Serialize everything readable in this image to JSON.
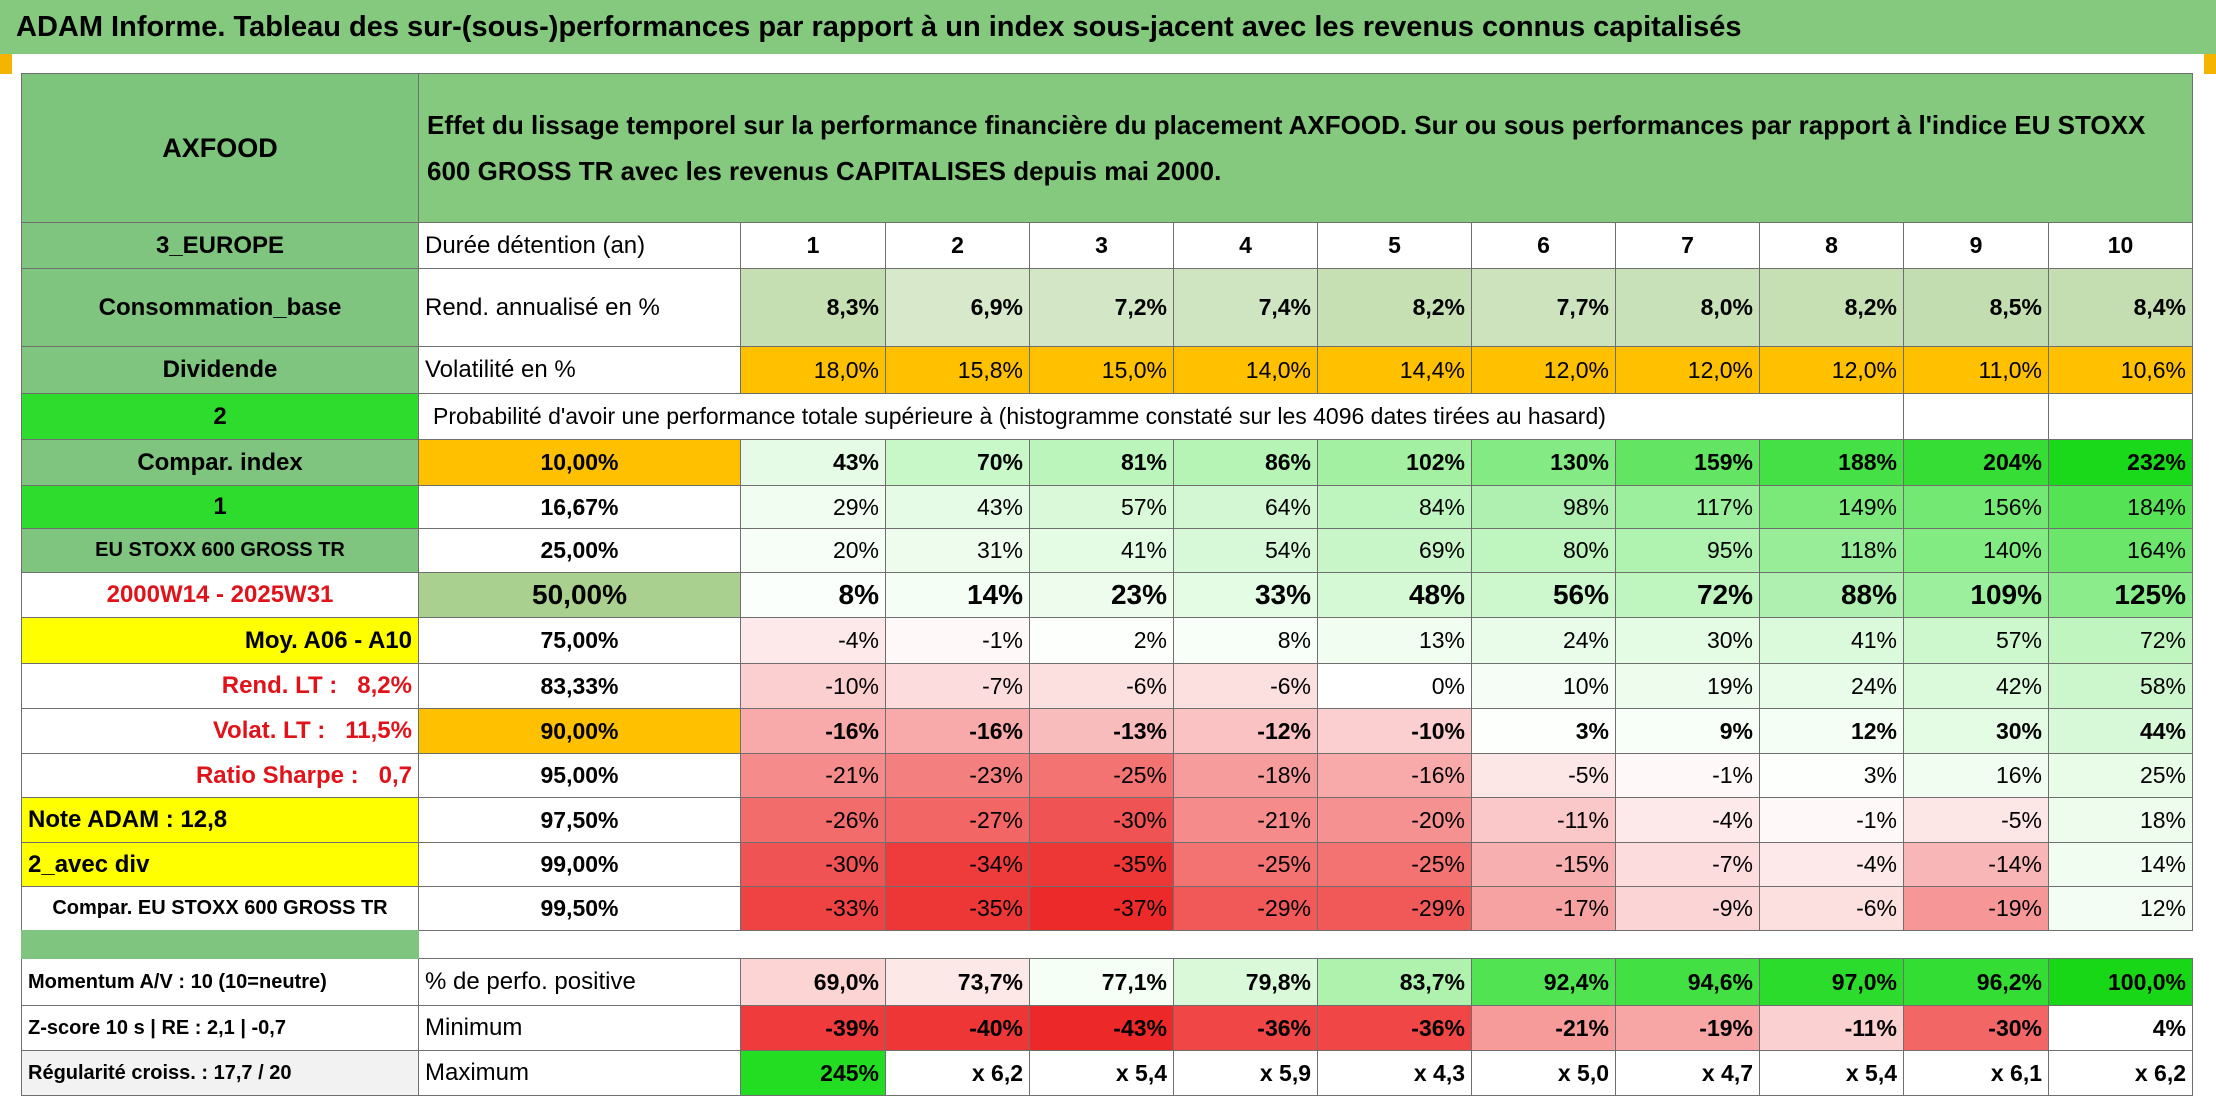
{
  "header": {
    "title": "ADAM Informe. Tableau des sur-(sous-)performances par rapport à un index sous-jacent avec les revenus connus capitalisés"
  },
  "table": {
    "top": {
      "name": "AXFOOD",
      "description": "Effet du lissage temporel sur la performance financière du placement AXFOOD. Sur ou sous performances par rapport à l'indice EU STOXX 600 GROSS TR avec les revenus CAPITALISES depuis mai 2000.",
      "nameFill": "#7dc47d",
      "descriptionFill": "#84c97e"
    },
    "rows": [
      {
        "label": "3_EUROPE",
        "labelFill": "#7fc47f",
        "head": "Durée détention (an)",
        "headFill": "#ffffff",
        "cells": [
          "1",
          "2",
          "3",
          "4",
          "5",
          "6",
          "7",
          "8",
          "9",
          "10"
        ],
        "fills": [
          "#ffffff",
          "#ffffff",
          "#ffffff",
          "#ffffff",
          "#ffffff",
          "#ffffff",
          "#ffffff",
          "#ffffff",
          "#ffffff",
          "#ffffff"
        ]
      },
      {
        "label": "Consommation_base",
        "labelFill": "#7fc47f",
        "head": "Rend. annualisé en %",
        "headFill": "#ffffff",
        "cells": [
          "8,3%",
          "6,9%",
          "7,2%",
          "7,4%",
          "8,2%",
          "7,7%",
          "8,0%",
          "8,2%",
          "8,5%",
          "8,4%"
        ],
        "fills": [
          "#c5dfb3",
          "#d8e9cb",
          "#d3e6c5",
          "#cfe4c0",
          "#c6e0b4",
          "#cde3be",
          "#c9e1b8",
          "#c6e0b4",
          "#c2ddaf",
          "#c4deb1"
        ]
      },
      {
        "label": "Dividende",
        "labelFill": "#7fc47f",
        "head": "Volatilité en %",
        "headFill": "#ffffff",
        "cells": [
          "18,0%",
          "15,8%",
          "15,0%",
          "14,0%",
          "14,4%",
          "12,0%",
          "12,0%",
          "12,0%",
          "11,0%",
          "10,6%"
        ],
        "fills": [
          "#ffc000",
          "#ffc000",
          "#ffc000",
          "#ffc000",
          "#ffc000",
          "#ffc000",
          "#ffc000",
          "#ffc000",
          "#ffc000",
          "#ffc000"
        ]
      },
      {
        "label": "2",
        "labelFill": "#2ddc2d",
        "head": "Probabilité d'avoir une performance totale supérieure à (histogramme constaté sur les 4096 dates tirées au hasard)",
        "headFill": "#ffffff",
        "cells": [],
        "fills": []
      },
      {
        "label": "Compar. index",
        "labelFill": "#7fc47f",
        "head": "10,00%",
        "headFill": "#ffc000",
        "cells": [
          "43%",
          "70%",
          "81%",
          "86%",
          "102%",
          "130%",
          "159%",
          "188%",
          "204%",
          "232%"
        ],
        "fills": [
          "#e6fbe6",
          "#c8f7c8",
          "#bcf5bc",
          "#b6f4b6",
          "#a3f0a3",
          "#84eb84",
          "#63e563",
          "#45e045",
          "#35dd35",
          "#1ad81a"
        ]
      },
      {
        "label": "1",
        "labelFill": "#2ddc2d",
        "head": "16,67%",
        "headFill": "#ffffff",
        "cells": [
          "29%",
          "43%",
          "57%",
          "64%",
          "84%",
          "98%",
          "117%",
          "149%",
          "156%",
          "184%"
        ],
        "fills": [
          "#f2fdf2",
          "#e6fbe6",
          "#d9f9d9",
          "#d2f7d2",
          "#bef5be",
          "#afefaf",
          "#9cef9c",
          "#7ae97a",
          "#73e873",
          "#55e355"
        ]
      },
      {
        "label": "EU STOXX 600 GROSS TR",
        "labelFill": "#7fc47f",
        "head": "25,00%",
        "headFill": "#ffffff",
        "cells": [
          "20%",
          "31%",
          "41%",
          "54%",
          "69%",
          "80%",
          "95%",
          "118%",
          "140%",
          "164%"
        ],
        "fills": [
          "#f7fef7",
          "#eefcee",
          "#e4fbe4",
          "#d8f9d8",
          "#c9f6c9",
          "#bff5bf",
          "#b0f2b0",
          "#98ee98",
          "#82eb82",
          "#6be66b"
        ]
      },
      {
        "label": "2000W14 - 2025W31",
        "labelFill": "#ffffff",
        "head": "50,00%",
        "headFill": "#a9d08e",
        "cells": [
          "8%",
          "14%",
          "23%",
          "33%",
          "48%",
          "56%",
          "72%",
          "88%",
          "109%",
          "125%"
        ],
        "fills": [
          "#fbfffb",
          "#f5fef5",
          "#edfced",
          "#e4fbe4",
          "#d5f8d5",
          "#cdf7cd",
          "#bff5bf",
          "#afefaf",
          "#9cef9c",
          "#8bec8b"
        ]
      },
      {
        "label": "Moy. A06 - A10",
        "labelFill": "#ffff00",
        "head": "75,00%",
        "headFill": "#ffffff",
        "cells": [
          "-4%",
          "-1%",
          "2%",
          "8%",
          "13%",
          "24%",
          "30%",
          "41%",
          "57%",
          "72%"
        ],
        "fills": [
          "#fde9e9",
          "#fef8f8",
          "#fdfffd",
          "#f8fef8",
          "#f2fdf2",
          "#e9fce9",
          "#e4fbe4",
          "#dbf9db",
          "#cdf7cd",
          "#c0f5c0"
        ]
      },
      {
        "label": "Rend. LT :   8,2%",
        "labelFill": "#ffffff",
        "head": "83,33%",
        "headFill": "#ffffff",
        "cells": [
          "-10%",
          "-7%",
          "-6%",
          "-6%",
          "0%",
          "10%",
          "19%",
          "24%",
          "42%",
          "58%"
        ],
        "fills": [
          "#fbcfcf",
          "#fcdcdc",
          "#fce0e0",
          "#fce0e0",
          "#ffffff",
          "#f6fdf6",
          "#eefcee",
          "#e9fce9",
          "#dbf9db",
          "#ccf7cc"
        ]
      },
      {
        "label": "Volat. LT :   11,5%",
        "labelFill": "#ffffff",
        "head": "90,00%",
        "headFill": "#ffc000",
        "cells": [
          "-16%",
          "-16%",
          "-13%",
          "-12%",
          "-10%",
          "3%",
          "9%",
          "12%",
          "30%",
          "44%"
        ],
        "fills": [
          "#f8a9a9",
          "#f8a9a9",
          "#f9bcbc",
          "#fac2c2",
          "#fbcfcf",
          "#fdfffd",
          "#f8fef8",
          "#f5fef5",
          "#e4fbe4",
          "#d8f9d8"
        ]
      },
      {
        "label": "Ratio Sharpe :   0,7",
        "labelFill": "#ffffff",
        "head": "95,00%",
        "headFill": "#ffffff",
        "cells": [
          "-21%",
          "-23%",
          "-25%",
          "-18%",
          "-16%",
          "-5%",
          "-1%",
          "3%",
          "16%",
          "25%"
        ],
        "fills": [
          "#f58b8b",
          "#f47f7f",
          "#f37373",
          "#f69c9c",
          "#f8a9a9",
          "#fde6e6",
          "#fef8f8",
          "#fcfffc",
          "#f0fdf0",
          "#e8fce8"
        ]
      },
      {
        "label": "Note ADAM : 12,8",
        "labelFill": "#ffff00",
        "head": "97,50%",
        "headFill": "#ffffff",
        "cells": [
          "-26%",
          "-27%",
          "-30%",
          "-21%",
          "-20%",
          "-11%",
          "-4%",
          "-1%",
          "-5%",
          "18%"
        ],
        "fills": [
          "#f26c6c",
          "#f26666",
          "#f05353",
          "#f58b8b",
          "#f59191",
          "#fac8c8",
          "#fde9e9",
          "#fef8f8",
          "#fde6e6",
          "#eefcee"
        ]
      },
      {
        "label": "2_avec div",
        "labelFill": "#ffff00",
        "head": "99,00%",
        "headFill": "#ffffff",
        "cells": [
          "-30%",
          "-34%",
          "-35%",
          "-25%",
          "-25%",
          "-15%",
          "-7%",
          "-4%",
          "-14%",
          "14%"
        ],
        "fills": [
          "#f05353",
          "#ee3c3c",
          "#ed3636",
          "#f37373",
          "#f37373",
          "#f8afaf",
          "#fcdcdc",
          "#fde9e9",
          "#f9b6b6",
          "#f2fdf2"
        ]
      },
      {
        "label": "Compar. EU STOXX 600 GROSS TR",
        "labelFill": "#ffffff",
        "head": "99,50%",
        "headFill": "#ffffff",
        "cells": [
          "-33%",
          "-35%",
          "-37%",
          "-29%",
          "-29%",
          "-17%",
          "-9%",
          "-6%",
          "-19%",
          "12%"
        ],
        "fills": [
          "#ef4242",
          "#ed3636",
          "#ec2a2a",
          "#f15959",
          "#f15959",
          "#f7a2a2",
          "#fbd5d5",
          "#fce0e0",
          "#f69696",
          "#f4fdf4"
        ]
      },
      {
        "label": "Momentum A/V : 10 (10=neutre)",
        "labelFill": "#ffffff",
        "head": "% de perfo. positive",
        "headFill": "#ffffff",
        "cells": [
          "69,0%",
          "73,7%",
          "77,1%",
          "79,8%",
          "83,7%",
          "92,4%",
          "94,6%",
          "97,0%",
          "96,2%",
          "100,0%"
        ],
        "fills": [
          "#fcd4d4",
          "#fde8e8",
          "#f6fff6",
          "#d9f9d9",
          "#aef2ae",
          "#52e352",
          "#42e042",
          "#2cdc2c",
          "#34dd34",
          "#17d717"
        ]
      },
      {
        "label": "Z-score 10 s | RE : 2,1 | -0,7",
        "labelFill": "#ffffff",
        "head": "Minimum",
        "headFill": "#ffffff",
        "cells": [
          "-39%",
          "-40%",
          "-43%",
          "-36%",
          "-36%",
          "-21%",
          "-19%",
          "-11%",
          "-30%",
          "4%"
        ],
        "fills": [
          "#ef3b3b",
          "#ee3636",
          "#ec2828",
          "#f04646",
          "#f04646",
          "#f79a9a",
          "#f7a5a5",
          "#fad0d0",
          "#f36666",
          "#ffffff"
        ]
      },
      {
        "label": "Régularité croiss. : 17,7 / 20",
        "labelFill": "#f2f2f2",
        "head": "Maximum",
        "headFill": "#ffffff",
        "cells": [
          "245%",
          "x 6,2",
          "x 5,4",
          "x 5,9",
          "x 4,3",
          "x 5,0",
          "x 4,7",
          "x 5,4",
          "x 6,1",
          "x 6,2"
        ],
        "fills": [
          "#22dd22",
          "#ffffff",
          "#ffffff",
          "#ffffff",
          "#ffffff",
          "#ffffff",
          "#ffffff",
          "#ffffff",
          "#ffffff",
          "#ffffff"
        ]
      }
    ]
  }
}
